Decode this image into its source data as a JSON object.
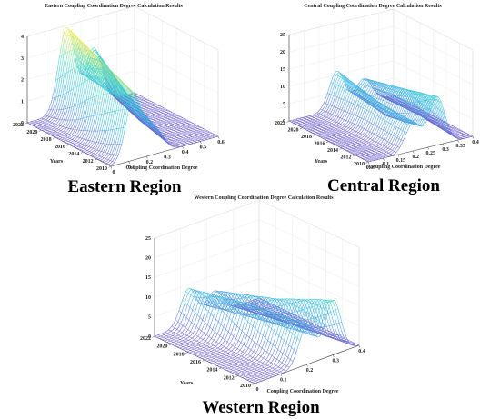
{
  "chart_data": [
    {
      "type": "surface",
      "title": "Eastern Coupling Coordination Degree Calculation Results",
      "region_label": "Eastern Region",
      "xlabel": "Coupling Coordination Degree",
      "ylabel": "Years",
      "zlabel": "",
      "x_ticks": [
        "0",
        "0.1",
        "0.2",
        "0.3",
        "0.4",
        "0.5",
        "0.6"
      ],
      "y_ticks": [
        "2010",
        "2012",
        "2014",
        "2016",
        "2018",
        "2020",
        "2022"
      ],
      "z_ticks": [
        "0",
        "1",
        "2",
        "3",
        "4"
      ],
      "xlim": [
        0,
        0.6
      ],
      "ylim": [
        2010,
        2022
      ],
      "zlim": [
        0,
        4
      ],
      "colormap": [
        "#6a5acd",
        "#3cb4e6",
        "#40d9c8",
        "#f3e94a"
      ],
      "grid": true,
      "density_peaks": [
        {
          "year": 2010,
          "peaks": [
            {
              "x": 0.13,
              "z": 3.0
            },
            {
              "x": 0.25,
              "z": 1.1
            }
          ]
        },
        {
          "year": 2016,
          "peaks": [
            {
              "x": 0.17,
              "z": 3.5
            },
            {
              "x": 0.3,
              "z": 1.8
            }
          ]
        },
        {
          "year": 2022,
          "peaks": [
            {
              "x": 0.22,
              "z": 3.9
            },
            {
              "x": 0.37,
              "z": 2.6
            }
          ]
        }
      ]
    },
    {
      "type": "surface",
      "title": "Central Coupling Coordination Degree Calculation Results",
      "region_label": "Central Region",
      "xlabel": "Coupling Coordination Degree",
      "ylabel": "Years",
      "zlabel": "",
      "x_ticks": [
        "0.05",
        "0.1",
        "0.15",
        "0.2",
        "0.25",
        "0.3",
        "0.35",
        "0.4"
      ],
      "y_ticks": [
        "2010",
        "2012",
        "2014",
        "2016",
        "2018",
        "2020",
        "2022"
      ],
      "z_ticks": [
        "0",
        "5",
        "10",
        "15",
        "20",
        "25"
      ],
      "xlim": [
        0.05,
        0.4
      ],
      "ylim": [
        2010,
        2022
      ],
      "zlim": [
        0,
        25
      ],
      "colormap": [
        "#6a5acd",
        "#3cb4e6",
        "#40d9c8",
        "#f3e94a"
      ],
      "grid": true,
      "density_peaks": [
        {
          "year": 2010,
          "peaks": [
            {
              "x": 0.2,
              "z": 8.0
            },
            {
              "x": 0.28,
              "z": 14.0
            }
          ]
        },
        {
          "year": 2016,
          "peaks": [
            {
              "x": 0.2,
              "z": 9.0
            },
            {
              "x": 0.3,
              "z": 10.0
            }
          ]
        },
        {
          "year": 2022,
          "peaks": [
            {
              "x": 0.21,
              "z": 11.0
            },
            {
              "x": 0.3,
              "z": 7.0
            }
          ]
        }
      ]
    },
    {
      "type": "surface",
      "title": "Western Coupling Coordination Degree Calculation Results",
      "region_label": "Western Region",
      "xlabel": "Coupling Coordination Degree",
      "ylabel": "Years",
      "zlabel": "",
      "x_ticks": [
        "0",
        "0.1",
        "0.2",
        "0.3",
        "0.4"
      ],
      "y_ticks": [
        "2010",
        "2012",
        "2014",
        "2016",
        "2018",
        "2020",
        "2022"
      ],
      "z_ticks": [
        "0",
        "5",
        "10",
        "15",
        "20",
        "25"
      ],
      "xlim": [
        0,
        0.4
      ],
      "ylim": [
        2010,
        2022
      ],
      "zlim": [
        0,
        25
      ],
      "colormap": [
        "#6a5acd",
        "#3cb4e6",
        "#40d9c8",
        "#f3e94a"
      ],
      "grid": true,
      "density_peaks": [
        {
          "year": 2010,
          "peaks": [
            {
              "x": 0.2,
              "z": 10.0
            },
            {
              "x": 0.3,
              "z": 14.0
            }
          ]
        },
        {
          "year": 2016,
          "peaks": [
            {
              "x": 0.17,
              "z": 10.0
            },
            {
              "x": 0.27,
              "z": 9.0
            }
          ]
        },
        {
          "year": 2022,
          "peaks": [
            {
              "x": 0.13,
              "z": 9.0
            },
            {
              "x": 0.23,
              "z": 6.0
            }
          ]
        }
      ]
    }
  ]
}
